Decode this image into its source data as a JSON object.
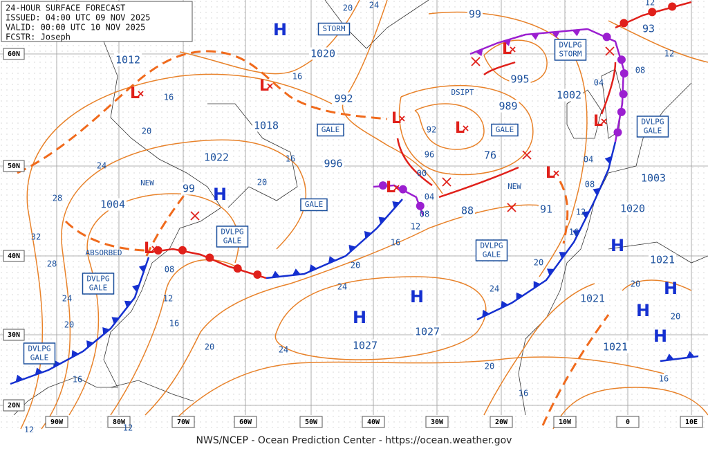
{
  "header": {
    "lines": [
      "24-HOUR SURFACE FORECAST",
      "ISSUED: 04:00 UTC 09 NOV 2025",
      "VALID:  00:00 UTC 10 NOV 2025",
      "FCSTR:  Joseph"
    ]
  },
  "footer": "NWS/NCEP - Ocean Prediction Center - https://ocean.weather.gov",
  "lat_labels": [
    "60N",
    "50N",
    "40N",
    "30N",
    "20N"
  ],
  "lon_labels": [
    "90W",
    "80W",
    "70W",
    "60W",
    "50W",
    "40W",
    "30W",
    "20W",
    "10W",
    "0",
    "10E"
  ],
  "highs": [
    "H",
    "H",
    "H",
    "H",
    "H",
    "H",
    "H",
    "H"
  ],
  "lows": [
    "L",
    "L",
    "L",
    "L",
    "L",
    "L",
    "L",
    "L",
    "L"
  ],
  "pressure_labels": [
    "1012",
    "1020",
    "992",
    "1018",
    "1022",
    "996",
    "99",
    "1004",
    "99",
    "995",
    "989",
    "1002",
    "76",
    "88",
    "91",
    "93",
    "1003",
    "1020",
    "1021",
    "1021",
    "1027",
    "1027",
    "1021"
  ],
  "contour_labels": [
    "20",
    "24",
    "16",
    "16",
    "20",
    "24",
    "16",
    "20",
    "28",
    "32",
    "28",
    "24",
    "20",
    "16",
    "12",
    "12",
    "08",
    "12",
    "16",
    "20",
    "24",
    "24",
    "20",
    "16",
    "12",
    "08",
    "04",
    "00",
    "96",
    "92",
    "24",
    "20",
    "20",
    "16",
    "16",
    "20",
    "20",
    "12",
    "16",
    "08",
    "04",
    "04",
    "08",
    "12",
    "12"
  ],
  "boxes": [
    [
      "STORM"
    ],
    [
      "GALE"
    ],
    [
      "GALE"
    ],
    [
      "GALE"
    ],
    [
      "DVLPG",
      "GALE"
    ],
    [
      "DVLPG",
      "GALE"
    ],
    [
      "DVLPG",
      "GALE"
    ],
    [
      "DVLPG",
      "STORM"
    ],
    [
      "DVLPG",
      "GALE"
    ],
    [
      "DVLPG",
      "GALE"
    ]
  ],
  "notes": [
    "NEW",
    "NEW",
    "ABSORBED",
    "DSIPT"
  ]
}
